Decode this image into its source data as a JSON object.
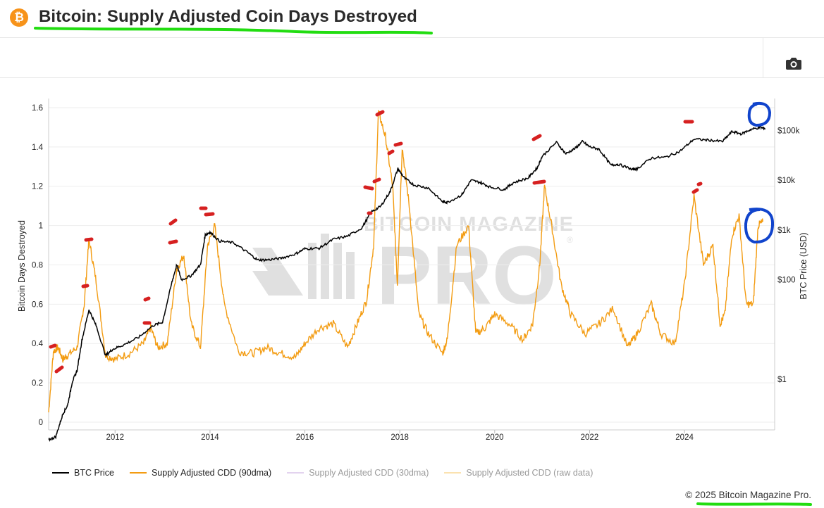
{
  "header": {
    "title": "Bitcoin: Supply Adjusted Coin Days Destroyed",
    "logo_symbol": "₿",
    "brand_color": "#f7931a"
  },
  "toolbar": {
    "camera_icon": "camera-icon"
  },
  "watermark": {
    "line1": "BITCOIN MAGAZINE",
    "line2": "PRO",
    "registered": "®"
  },
  "legend": [
    {
      "label": "BTC Price",
      "color": "#000000",
      "active": true
    },
    {
      "label": "Supply Adjusted CDD (90dma)",
      "color": "#f39c12",
      "active": true
    },
    {
      "label": "Supply Adjusted CDD (30dma)",
      "color": "#c9a6e0",
      "active": false
    },
    {
      "label": "Supply Adjusted CDD (raw data)",
      "color": "#f7c96d",
      "active": false
    }
  ],
  "footer": {
    "copyright": "© 2025 Bitcoin Magazine Pro."
  },
  "annotation_colors": {
    "highlight": "#22dd11",
    "red_marks": "#d62020",
    "blue_circles": "#1144cc"
  },
  "chart_data": {
    "type": "line",
    "title": "Bitcoin: Supply Adjusted Coin Days Destroyed",
    "xlabel": "",
    "ylabel": "Bitcoin Days Destroyed",
    "y2label": "BTC Price (USD)",
    "xlim": [
      2010.6,
      2025.9
    ],
    "ylim": [
      0,
      1.65
    ],
    "y2_scale": "log",
    "y2lim": [
      0.05,
      500000
    ],
    "x_ticks": [
      2012,
      2014,
      2016,
      2018,
      2020,
      2022,
      2024
    ],
    "y_ticks": [
      0,
      0.2,
      0.4,
      0.6,
      0.8,
      1,
      1.2,
      1.4,
      1.6
    ],
    "y2_ticks": [
      {
        "value": 1,
        "label": "$1"
      },
      {
        "value": 100,
        "label": "$100"
      },
      {
        "value": 1000,
        "label": "$1k"
      },
      {
        "value": 10000,
        "label": "$10k"
      },
      {
        "value": 100000,
        "label": "$100k"
      }
    ],
    "grid": true,
    "series": [
      {
        "name": "BTC Price",
        "axis": "right",
        "color": "#000000",
        "x": [
          2010.6,
          2010.75,
          2010.9,
          2011.0,
          2011.1,
          2011.2,
          2011.3,
          2011.45,
          2011.6,
          2011.8,
          2011.95,
          2012.2,
          2012.5,
          2012.8,
          2013.0,
          2013.2,
          2013.3,
          2013.4,
          2013.6,
          2013.8,
          2013.9,
          2014.0,
          2014.2,
          2014.5,
          2014.8,
          2015.0,
          2015.2,
          2015.5,
          2015.8,
          2016.0,
          2016.3,
          2016.6,
          2016.9,
          2017.2,
          2017.4,
          2017.6,
          2017.8,
          2017.96,
          2018.1,
          2018.3,
          2018.6,
          2018.9,
          2019.0,
          2019.3,
          2019.5,
          2019.7,
          2019.9,
          2020.2,
          2020.4,
          2020.7,
          2020.9,
          2021.0,
          2021.3,
          2021.5,
          2021.7,
          2021.85,
          2022.0,
          2022.2,
          2022.45,
          2022.6,
          2022.9,
          2023.0,
          2023.3,
          2023.6,
          2023.9,
          2024.2,
          2024.5,
          2024.8,
          2025.0,
          2025.2,
          2025.4,
          2025.6,
          2025.7
        ],
        "y": [
          0.06,
          0.07,
          0.2,
          0.3,
          0.9,
          1.5,
          6,
          25,
          12,
          3,
          4,
          5,
          7,
          12,
          14,
          90,
          200,
          100,
          120,
          200,
          800,
          900,
          600,
          550,
          350,
          250,
          250,
          270,
          330,
          420,
          430,
          650,
          750,
          1100,
          2300,
          3000,
          6000,
          17000,
          11000,
          8000,
          7000,
          3700,
          3600,
          5000,
          10000,
          9000,
          7300,
          6500,
          9000,
          11000,
          18000,
          30000,
          58000,
          34000,
          44000,
          60000,
          47000,
          42000,
          20000,
          21000,
          16500,
          17000,
          28000,
          29000,
          38000,
          67000,
          64000,
          60000,
          95000,
          85000,
          105000,
          115000,
          110000
        ]
      },
      {
        "name": "Supply Adjusted CDD (90dma)",
        "axis": "left",
        "color": "#f39c12",
        "x": [
          2010.6,
          2010.7,
          2010.8,
          2010.9,
          2011.0,
          2011.2,
          2011.35,
          2011.45,
          2011.6,
          2011.8,
          2012.0,
          2012.3,
          2012.6,
          2012.75,
          2012.9,
          2013.1,
          2013.3,
          2013.45,
          2013.6,
          2013.8,
          2013.95,
          2014.1,
          2014.3,
          2014.6,
          2014.9,
          2015.2,
          2015.5,
          2015.8,
          2016.0,
          2016.3,
          2016.6,
          2016.9,
          2017.1,
          2017.3,
          2017.45,
          2017.55,
          2017.7,
          2017.85,
          2017.95,
          2018.05,
          2018.2,
          2018.4,
          2018.6,
          2018.9,
          2019.0,
          2019.2,
          2019.45,
          2019.6,
          2019.8,
          2020.0,
          2020.3,
          2020.6,
          2020.8,
          2020.95,
          2021.05,
          2021.2,
          2021.4,
          2021.6,
          2021.9,
          2022.2,
          2022.5,
          2022.8,
          2023.0,
          2023.3,
          2023.5,
          2023.8,
          2024.0,
          2024.2,
          2024.4,
          2024.6,
          2024.75,
          2024.85,
          2025.0,
          2025.15,
          2025.3,
          2025.45,
          2025.55,
          2025.65
        ],
        "y": [
          0.05,
          0.36,
          0.38,
          0.32,
          0.34,
          0.38,
          0.6,
          0.93,
          0.72,
          0.34,
          0.32,
          0.35,
          0.4,
          0.48,
          0.38,
          0.4,
          0.78,
          0.85,
          0.5,
          0.38,
          0.9,
          1.0,
          0.6,
          0.36,
          0.35,
          0.38,
          0.35,
          0.33,
          0.4,
          0.48,
          0.5,
          0.38,
          0.5,
          0.62,
          0.9,
          1.58,
          1.45,
          1.2,
          0.7,
          1.4,
          1.1,
          0.55,
          0.45,
          0.35,
          0.42,
          0.9,
          1.0,
          0.45,
          0.48,
          0.55,
          0.5,
          0.42,
          0.5,
          0.8,
          1.2,
          1.0,
          0.7,
          0.55,
          0.45,
          0.5,
          0.58,
          0.38,
          0.45,
          0.6,
          0.45,
          0.4,
          0.7,
          1.15,
          0.8,
          0.9,
          0.5,
          0.55,
          0.95,
          1.05,
          0.6,
          0.6,
          1.0,
          1.02
        ]
      },
      {
        "name": "Supply Adjusted CDD (30dma)",
        "axis": "left",
        "color": "#c9a6e0",
        "hidden": true,
        "x": [],
        "y": []
      },
      {
        "name": "Supply Adjusted CDD (raw data)",
        "axis": "left",
        "color": "#f7c96d",
        "hidden": true,
        "x": [],
        "y": []
      }
    ],
    "annotations": [
      {
        "type": "red-marks",
        "description": "hand-drawn red marks on CDD peaks and price tops"
      },
      {
        "type": "blue-circle",
        "x": 2025.55,
        "axis": "right",
        "y": 100000
      },
      {
        "type": "blue-circle",
        "x": 2025.55,
        "axis": "left",
        "y": 1.0
      }
    ]
  }
}
